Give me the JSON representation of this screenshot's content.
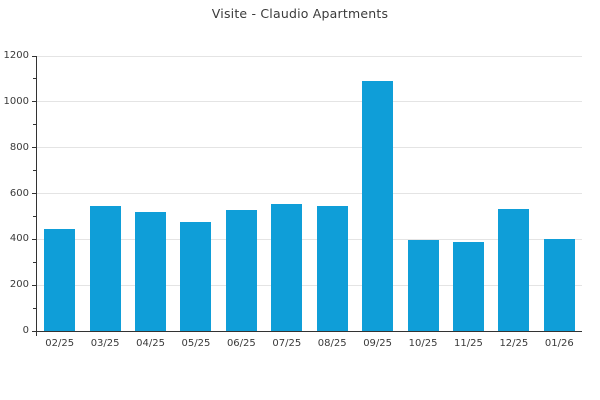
{
  "chart_data": {
    "type": "bar",
    "title": "Visite - Claudio Apartments",
    "categories": [
      "02/25",
      "03/25",
      "04/25",
      "05/25",
      "06/25",
      "07/25",
      "08/25",
      "09/25",
      "10/25",
      "11/25",
      "12/25",
      "01/26"
    ],
    "values": [
      445,
      544,
      518,
      476,
      527,
      556,
      547,
      1090,
      396,
      388,
      531,
      400
    ],
    "xlabel": "",
    "ylabel": "",
    "ylim": [
      0,
      1200
    ],
    "y_major_ticks": [
      0,
      200,
      400,
      600,
      800,
      1000,
      1200
    ],
    "y_minor_step": 100,
    "grid": "horizontal-major-only",
    "legend": "none",
    "bar_color": "#0f9ed8",
    "grid_color": "#e4e4e4",
    "axis_color": "#333333",
    "text_color": "#3a3a3a"
  }
}
